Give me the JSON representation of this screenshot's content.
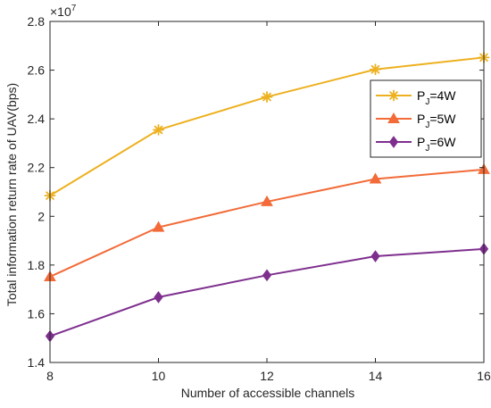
{
  "chart_data": {
    "type": "line",
    "x": [
      8,
      10,
      12,
      14,
      16
    ],
    "xlabel": "Number of accessible channels",
    "ylabel": "Total information return rate of UAV(bps)",
    "xlim": [
      8,
      16
    ],
    "ylim": [
      1.4,
      2.8
    ],
    "y_exponent": "×10",
    "y_exponent_power": "7",
    "x_ticks": [
      "8",
      "10",
      "12",
      "14",
      "16"
    ],
    "y_ticks": [
      "1.4",
      "1.6",
      "1.8",
      "2",
      "2.2",
      "2.4",
      "2.6",
      "2.8"
    ],
    "grid": false,
    "legend_position": "right",
    "series": [
      {
        "name": "P_J=4W",
        "label_main": "P",
        "label_sub": "J",
        "label_rest": "=4W",
        "values": [
          2.085,
          2.355,
          2.49,
          2.603,
          2.652
        ],
        "color": "#EDB120",
        "marker": "asterisk"
      },
      {
        "name": "P_J=5W",
        "label_main": "P",
        "label_sub": "J",
        "label_rest": "=5W",
        "values": [
          1.752,
          1.955,
          2.06,
          2.153,
          2.192
        ],
        "color": "#F26B38",
        "marker": "triangle"
      },
      {
        "name": "P_J=6W",
        "label_main": "P",
        "label_sub": "J",
        "label_rest": "=6W",
        "values": [
          1.508,
          1.668,
          1.758,
          1.836,
          1.866
        ],
        "color": "#7E2F8E",
        "marker": "diamond"
      }
    ]
  }
}
